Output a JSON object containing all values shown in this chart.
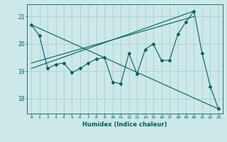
{
  "xlabel": "Humidex (Indice chaleur)",
  "bg_color": "#cce8e8",
  "line_color": "#006060",
  "grid_color": "#aacfcf",
  "xlim": [
    -0.5,
    23.5
  ],
  "ylim": [
    17.45,
    21.45
  ],
  "yticks": [
    18,
    19,
    20,
    21
  ],
  "xticks": [
    0,
    1,
    2,
    3,
    4,
    5,
    6,
    7,
    8,
    9,
    10,
    11,
    12,
    13,
    14,
    15,
    16,
    17,
    18,
    19,
    20,
    21,
    22,
    23
  ],
  "series1_x": [
    0,
    1,
    2,
    3,
    4,
    5,
    6,
    7,
    8,
    9,
    10,
    11,
    12,
    13,
    14,
    15,
    16,
    17,
    18,
    19,
    20,
    21,
    22,
    23
  ],
  "series1_y": [
    20.7,
    20.3,
    19.1,
    19.25,
    19.3,
    18.95,
    19.1,
    19.3,
    19.45,
    19.5,
    18.6,
    18.55,
    19.65,
    18.9,
    19.8,
    20.0,
    19.4,
    19.4,
    20.35,
    20.8,
    21.2,
    19.65,
    18.45,
    17.62
  ],
  "series2_x": [
    0,
    23
  ],
  "series2_y": [
    20.7,
    17.62
  ],
  "series3_x": [
    0,
    20
  ],
  "series3_y": [
    19.1,
    21.2
  ],
  "series4_x": [
    0,
    20
  ],
  "series4_y": [
    19.3,
    21.0
  ]
}
